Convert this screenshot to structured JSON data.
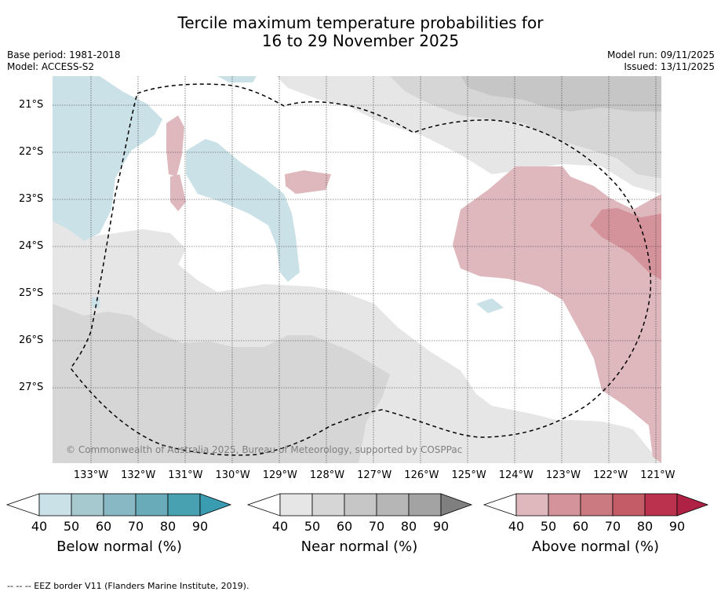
{
  "title": {
    "line1": "Tercile maximum temperature probabilities for",
    "line2": "16 to 29 November 2025"
  },
  "meta": {
    "base_period": "Base period: 1981-2018",
    "model": "Model: ACCESS-S2",
    "model_run": "Model run: 09/11/2025",
    "issued": "Issued: 13/11/2025"
  },
  "map": {
    "lat_labels": [
      "21°S",
      "22°S",
      "23°S",
      "24°S",
      "25°S",
      "26°S",
      "27°S"
    ],
    "lon_labels": [
      "133°W",
      "132°W",
      "131°W",
      "130°W",
      "129°W",
      "128°W",
      "127°W",
      "126°W",
      "125°W",
      "124°W",
      "123°W",
      "122°W",
      "121°W"
    ],
    "copyright": "© Commonwealth of Australia 2025, Bureau of Meteorology, supported by COSPPac",
    "colors": {
      "below_light": "#c9e1e7",
      "near_light": "#e6e6e6",
      "near_mid": "#d6d6d6",
      "near_dark": "#c6c6c6",
      "above_light": "#dfb8bd",
      "above_mid": "#d4929a"
    }
  },
  "colorbars": [
    {
      "title": "Below normal (%)",
      "ticks": [
        "40",
        "50",
        "60",
        "70",
        "80",
        "90"
      ],
      "colors": [
        "#c9e1e7",
        "#a6c8cf",
        "#88b8c4",
        "#6aabb9",
        "#47a1b1",
        "#3a9cb0"
      ]
    },
    {
      "title": "Near normal (%)",
      "ticks": [
        "40",
        "50",
        "60",
        "70",
        "80",
        "90"
      ],
      "colors": [
        "#e6e6e6",
        "#d6d6d6",
        "#c6c6c6",
        "#b6b6b6",
        "#a3a3a3",
        "#7f7f7f"
      ]
    },
    {
      "title": "Above normal (%)",
      "ticks": [
        "40",
        "50",
        "60",
        "70",
        "80",
        "90"
      ],
      "colors": [
        "#dfb8bd",
        "#d4929a",
        "#cc7a82",
        "#c45c68",
        "#ba324e",
        "#b02245"
      ]
    }
  ],
  "footer": "-- -- -- EEZ border V11 (Flanders Marine Institute, 2019)."
}
